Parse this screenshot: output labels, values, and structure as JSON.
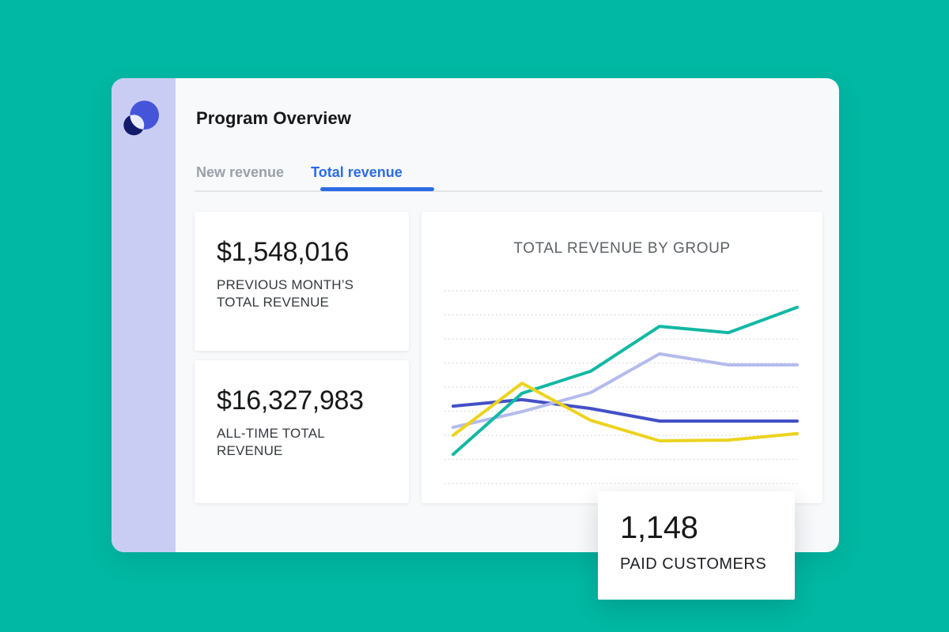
{
  "app": {
    "title": "Program Overview"
  },
  "tabs": [
    {
      "label": "New revenue",
      "active": false
    },
    {
      "label": "Total revenue",
      "active": true
    }
  ],
  "stats": [
    {
      "value": "$1,548,016",
      "label": "PREVIOUS MONTH’S TOTAL REVENUE"
    },
    {
      "value": "$16,327,983",
      "label": "ALL-TIME TOTAL REVENUE"
    }
  ],
  "highlight": {
    "value": "1,148",
    "label": "PAID CUSTOMERS"
  },
  "colors": {
    "background_teal": "#00b8a3",
    "sidebar_lavender": "#c9cdf4",
    "panel": "#f8f9fb",
    "active_tab_blue": "#2d6be5",
    "inactive_tab_gray": "#9aa1ab",
    "logo_primary_blue": "#4654da",
    "logo_dark_navy": "#141b6b",
    "logo_overlap": "#e9ecfb"
  },
  "chart_data": {
    "type": "line",
    "title": "TOTAL REVENUE BY GROUP",
    "x": [
      0,
      1,
      2,
      3,
      4,
      5
    ],
    "xlabel": "",
    "ylabel": "",
    "tick_labels_visible": false,
    "legend": "none",
    "grid": {
      "horizontal_lines": 9,
      "style": "dotted"
    },
    "ylim": [
      0,
      8
    ],
    "series": [
      {
        "name": "blue-group",
        "color": "#4350c7",
        "values": [
          3.21,
          3.48,
          3.11,
          2.59,
          2.59,
          2.59
        ]
      },
      {
        "name": "lavender-group",
        "color": "#b4bbec",
        "values": [
          2.33,
          2.98,
          3.77,
          5.38,
          4.92,
          4.92
        ]
      },
      {
        "name": "teal-group",
        "color": "#12b8a3",
        "values": [
          1.21,
          3.74,
          4.66,
          6.52,
          6.26,
          7.31
        ]
      },
      {
        "name": "yellow-group",
        "color": "#ecd31e",
        "values": [
          2.0,
          4.16,
          2.62,
          1.77,
          1.8,
          2.07
        ]
      }
    ]
  }
}
